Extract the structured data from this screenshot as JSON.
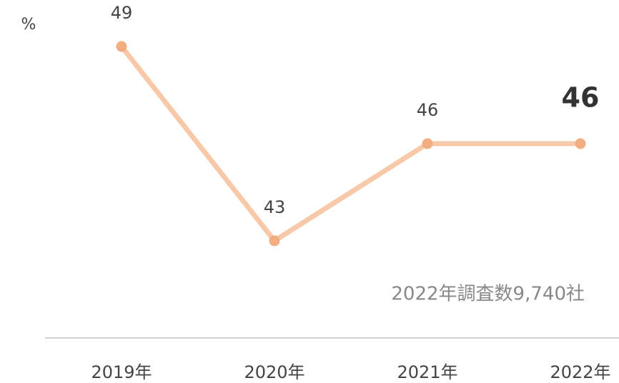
{
  "chart_data": {
    "type": "line",
    "unit": "%",
    "annotation": "2022年調査数9,740社",
    "categories": [
      "2019年",
      "2020年",
      "2021年",
      "2022年"
    ],
    "series": [
      {
        "name": null,
        "color": "#f8c9a8",
        "marker_color": "#f2ad80",
        "values": [
          49,
          43,
          46,
          46
        ]
      }
    ],
    "ylim": [
      40,
      50
    ],
    "grid": false
  }
}
